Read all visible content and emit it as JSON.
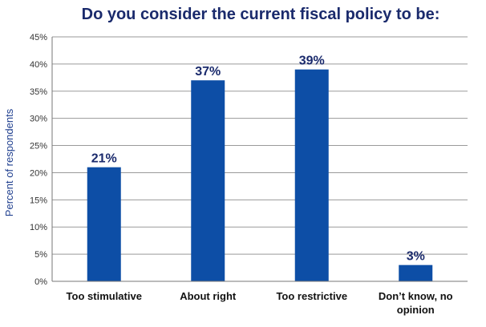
{
  "chart_data": {
    "type": "bar",
    "title": "Do you consider the current fiscal policy to be:",
    "xlabel": "",
    "ylabel": "Percent of respondents",
    "categories": [
      [
        "Too stimulative"
      ],
      [
        "About right"
      ],
      [
        "Too restrictive"
      ],
      [
        "Don’t know, no",
        "opinion"
      ]
    ],
    "values": [
      21,
      37,
      39,
      3
    ],
    "data_labels": [
      "21%",
      "37%",
      "39%",
      "3%"
    ],
    "ylim": [
      0,
      45
    ],
    "yticks": [
      0,
      5,
      10,
      15,
      20,
      25,
      30,
      35,
      40,
      45
    ],
    "ytick_labels": [
      "0%",
      "5%",
      "10%",
      "15%",
      "20%",
      "25%",
      "30%",
      "35%",
      "40%",
      "45%"
    ],
    "grid": true,
    "legend": "none",
    "bar_color": "#0d4ea6"
  }
}
